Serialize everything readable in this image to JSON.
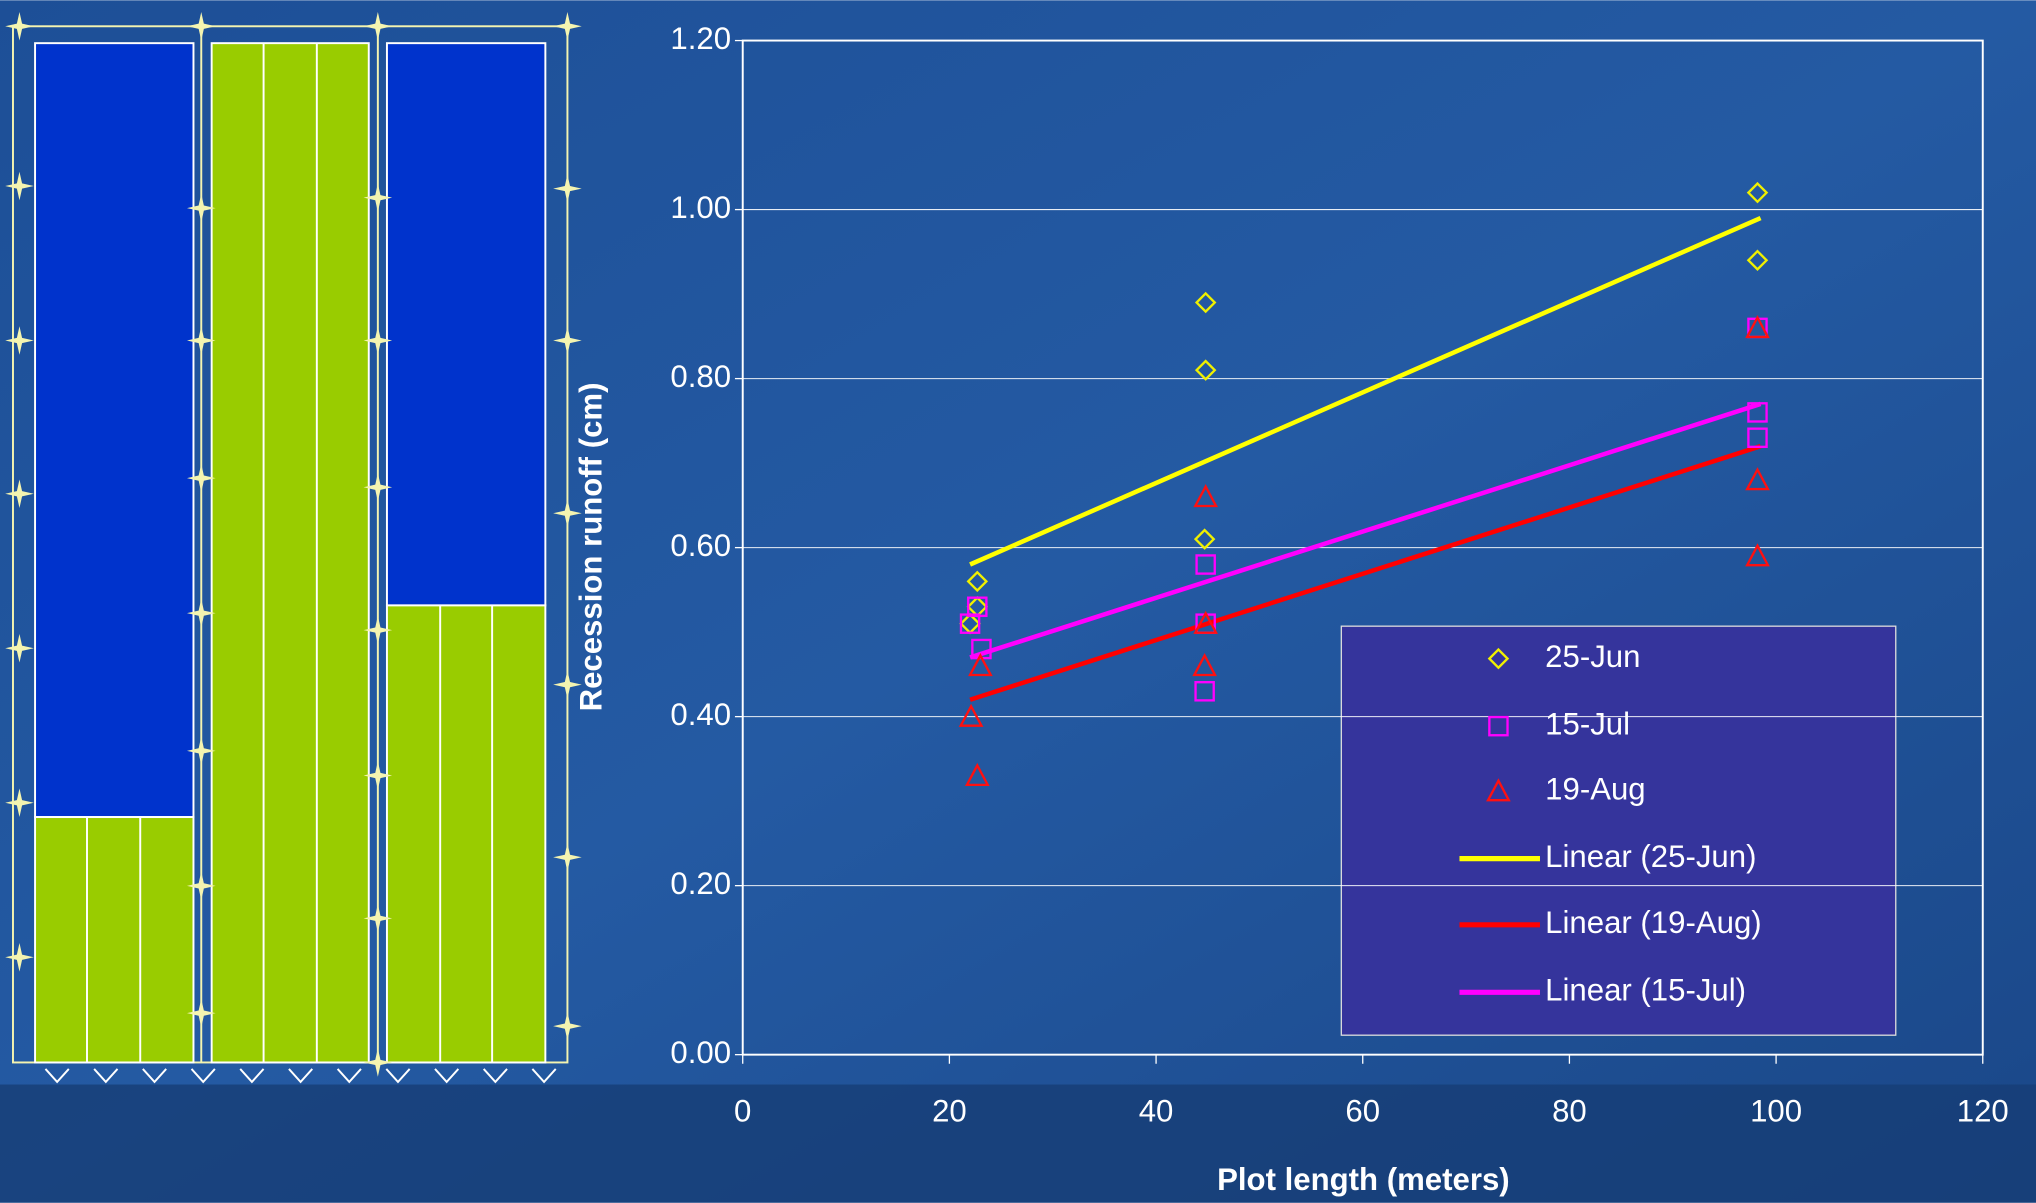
{
  "chart_data": {
    "type": "scatter",
    "xlabel": "Plot length (meters)",
    "ylabel": "Recession runoff (cm)",
    "xlim": [
      0,
      120
    ],
    "xticks": [
      0,
      20,
      40,
      60,
      80,
      100,
      120
    ],
    "ylim": [
      0,
      1.2
    ],
    "yticks": [
      {
        "value": 0,
        "label": "0.00"
      },
      {
        "value": 0.2,
        "label": "0.20"
      },
      {
        "value": 0.4,
        "label": "0.40"
      },
      {
        "value": 0.6,
        "label": "0.60"
      },
      {
        "value": 0.8,
        "label": "0.80"
      },
      {
        "value": 1.0,
        "label": "1.00"
      },
      {
        "value": 1.2,
        "label": "1.20"
      }
    ],
    "grid": true,
    "legend": "lower right",
    "series": [
      {
        "name": "25-Jun",
        "type": "scatter",
        "marker": "diamond",
        "color": "#f0f000",
        "x": [
          22.7,
          22.7,
          22.0,
          44.8,
          44.8,
          44.7,
          98.2,
          98.2
        ],
        "values": [
          0.56,
          0.53,
          0.51,
          0.89,
          0.81,
          0.61,
          1.02,
          0.94
        ]
      },
      {
        "name": "15-Jul",
        "type": "scatter",
        "marker": "square",
        "color": "#ff00ff",
        "x": [
          22.0,
          22.7,
          23.1,
          44.8,
          44.8,
          44.7,
          98.2,
          98.2,
          98.2
        ],
        "values": [
          0.51,
          0.53,
          0.48,
          0.58,
          0.51,
          0.43,
          0.86,
          0.76,
          0.73
        ]
      },
      {
        "name": "19-Aug",
        "type": "scatter",
        "marker": "triangle",
        "color": "#ff1010",
        "x": [
          22.1,
          23.0,
          22.7,
          44.8,
          44.8,
          44.7,
          98.2,
          98.2,
          98.2
        ],
        "values": [
          0.4,
          0.46,
          0.33,
          0.66,
          0.51,
          0.46,
          0.86,
          0.68,
          0.59
        ]
      },
      {
        "name": "Linear (25-Jun)",
        "type": "line",
        "color": "#ffff00",
        "x": [
          22.0,
          98.5
        ],
        "values": [
          0.58,
          0.99
        ]
      },
      {
        "name": "Linear (19-Aug)",
        "type": "line",
        "color": "#ff0000",
        "x": [
          22.0,
          98.5
        ],
        "values": [
          0.42,
          0.72
        ]
      },
      {
        "name": "Linear (15-Jul)",
        "type": "line",
        "color": "#ff00ff",
        "x": [
          22.0,
          98.5
        ],
        "values": [
          0.47,
          0.77
        ]
      }
    ]
  }
}
